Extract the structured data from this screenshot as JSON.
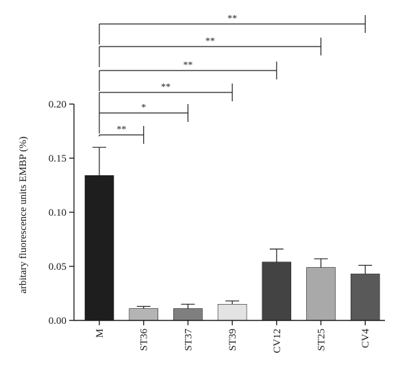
{
  "chart_data": {
    "type": "bar",
    "title": "",
    "xlabel": "",
    "ylabel": "arbitary fluorescence units EMBP (%)",
    "ylim": [
      0,
      0.2
    ],
    "yticks": [
      "0.00",
      "0.05",
      "0.10",
      "0.15",
      "0.20"
    ],
    "ytick_values": [
      0,
      0.05,
      0.1,
      0.15,
      0.2
    ],
    "categories": [
      "M",
      "ST36",
      "ST37",
      "ST39",
      "CV12",
      "ST25",
      "CV4"
    ],
    "values": [
      0.134,
      0.011,
      0.011,
      0.015,
      0.054,
      0.049,
      0.043
    ],
    "errors": [
      0.026,
      0.002,
      0.004,
      0.003,
      0.012,
      0.008,
      0.008
    ],
    "bar_colors": [
      "#1e1e1e",
      "#b4b4b4",
      "#7f7f7f",
      "#e3e3e3",
      "#434343",
      "#a9a9a9",
      "#595959"
    ],
    "comparisons": [
      {
        "from": "M",
        "to": "ST36",
        "label": "**"
      },
      {
        "from": "M",
        "to": "ST37",
        "label": "*"
      },
      {
        "from": "M",
        "to": "ST39",
        "label": "**"
      },
      {
        "from": "M",
        "to": "CV12",
        "label": "**"
      },
      {
        "from": "M",
        "to": "ST25",
        "label": "**"
      },
      {
        "from": "M",
        "to": "CV4",
        "label": "**"
      }
    ],
    "grid": false,
    "legend": "none"
  }
}
